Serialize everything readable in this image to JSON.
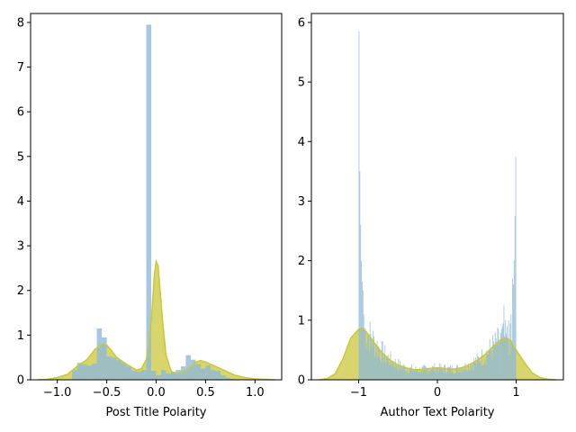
{
  "chart_data": [
    {
      "type": "bar",
      "subtype": "histogram-with-kde",
      "xlabel": "Post Title Polarity",
      "ylabel": "",
      "title": "",
      "xlim": [
        -1.27,
        1.27
      ],
      "ylim": [
        0,
        8.2
      ],
      "xticks": [
        -1.0,
        -0.5,
        0.0,
        0.5,
        1.0
      ],
      "xtick_labels": [
        "−1.0",
        "−0.5",
        "0.0",
        "0.5",
        "1.0"
      ],
      "yticks": [
        0,
        1,
        2,
        3,
        4,
        5,
        6,
        7,
        8
      ],
      "ytick_labels": [
        "0",
        "1",
        "2",
        "3",
        "4",
        "5",
        "6",
        "7",
        "8"
      ],
      "grid": false,
      "hist_color": "#8fb9d9",
      "kde_color": "#c9c73a",
      "bin_width": 0.05,
      "bin_starts": [
        -0.85,
        -0.8,
        -0.75,
        -0.7,
        -0.65,
        -0.6,
        -0.55,
        -0.5,
        -0.45,
        -0.4,
        -0.35,
        -0.3,
        -0.25,
        -0.2,
        -0.15,
        -0.1,
        -0.05,
        0.0,
        0.05,
        0.1,
        0.15,
        0.2,
        0.25,
        0.3,
        0.35,
        0.4,
        0.45,
        0.5,
        0.55,
        0.6,
        0.65,
        0.7,
        0.75
      ],
      "values": [
        0.22,
        0.38,
        0.35,
        0.32,
        0.36,
        1.15,
        0.95,
        0.52,
        0.5,
        0.44,
        0.38,
        0.3,
        0.2,
        0.18,
        0.22,
        7.95,
        0.2,
        0.1,
        0.22,
        0.14,
        0.18,
        0.22,
        0.3,
        0.55,
        0.45,
        0.35,
        0.25,
        0.32,
        0.22,
        0.2,
        0.1,
        0.05,
        0.02
      ],
      "kde_x": [
        -1.2,
        -1.1,
        -1.0,
        -0.9,
        -0.8,
        -0.7,
        -0.62,
        -0.55,
        -0.5,
        -0.45,
        -0.4,
        -0.3,
        -0.2,
        -0.15,
        -0.1,
        -0.07,
        -0.04,
        -0.02,
        0.0,
        0.02,
        0.04,
        0.07,
        0.1,
        0.15,
        0.2,
        0.3,
        0.35,
        0.4,
        0.45,
        0.5,
        0.6,
        0.7,
        0.8,
        0.9,
        1.0,
        1.1,
        1.2
      ],
      "kde_y": [
        0.0,
        0.01,
        0.05,
        0.12,
        0.3,
        0.45,
        0.68,
        0.8,
        0.78,
        0.65,
        0.5,
        0.35,
        0.22,
        0.25,
        0.45,
        0.85,
        1.6,
        2.3,
        2.65,
        2.55,
        2.0,
        1.2,
        0.55,
        0.2,
        0.13,
        0.2,
        0.3,
        0.4,
        0.43,
        0.4,
        0.3,
        0.2,
        0.1,
        0.05,
        0.02,
        0.01,
        0.0
      ]
    },
    {
      "type": "bar",
      "subtype": "histogram-with-kde",
      "xlabel": "Author Text Polarity",
      "ylabel": "",
      "title": "",
      "xlim": [
        -1.6,
        1.6
      ],
      "ylim": [
        0,
        6.15
      ],
      "xticks": [
        -1,
        0,
        1
      ],
      "xtick_labels": [
        "−1",
        "0",
        "1"
      ],
      "yticks": [
        0,
        1,
        2,
        3,
        4,
        5,
        6
      ],
      "ytick_labels": [
        "0",
        "1",
        "2",
        "3",
        "4",
        "5",
        "6"
      ],
      "grid": false,
      "hist_color": "#8fb9d9",
      "kde_color": "#c9c73a",
      "bin_width": 0.01,
      "bin_start": -1.0,
      "spikes": [
        {
          "x": -1.0,
          "v": 5.85
        },
        {
          "x": -0.99,
          "v": 3.5
        },
        {
          "x": -0.98,
          "v": 2.6
        },
        {
          "x": -0.97,
          "v": 2.0
        },
        {
          "x": -0.96,
          "v": 1.65
        },
        {
          "x": -0.95,
          "v": 1.5
        },
        {
          "x": -0.94,
          "v": 1.1
        },
        {
          "x": 0.82,
          "v": 0.9
        },
        {
          "x": 0.84,
          "v": 1.25
        },
        {
          "x": 0.9,
          "v": 1.0
        },
        {
          "x": 0.93,
          "v": 1.1
        },
        {
          "x": 0.95,
          "v": 1.7
        },
        {
          "x": 0.96,
          "v": 1.6
        },
        {
          "x": 0.97,
          "v": 2.0
        },
        {
          "x": 0.98,
          "v": 2.75
        },
        {
          "x": 0.99,
          "v": 3.75
        }
      ],
      "kde_x": [
        -1.5,
        -1.4,
        -1.3,
        -1.2,
        -1.1,
        -1.0,
        -0.95,
        -0.9,
        -0.8,
        -0.7,
        -0.6,
        -0.5,
        -0.4,
        -0.3,
        -0.2,
        -0.1,
        0.0,
        0.1,
        0.2,
        0.3,
        0.4,
        0.5,
        0.6,
        0.7,
        0.8,
        0.85,
        0.9,
        0.95,
        1.0,
        1.1,
        1.2,
        1.3,
        1.4,
        1.5
      ],
      "kde_y": [
        0.0,
        0.02,
        0.1,
        0.35,
        0.7,
        0.85,
        0.87,
        0.8,
        0.62,
        0.45,
        0.33,
        0.25,
        0.2,
        0.17,
        0.17,
        0.19,
        0.2,
        0.19,
        0.18,
        0.2,
        0.25,
        0.32,
        0.42,
        0.55,
        0.67,
        0.7,
        0.69,
        0.62,
        0.5,
        0.3,
        0.12,
        0.04,
        0.01,
        0.0
      ]
    }
  ]
}
